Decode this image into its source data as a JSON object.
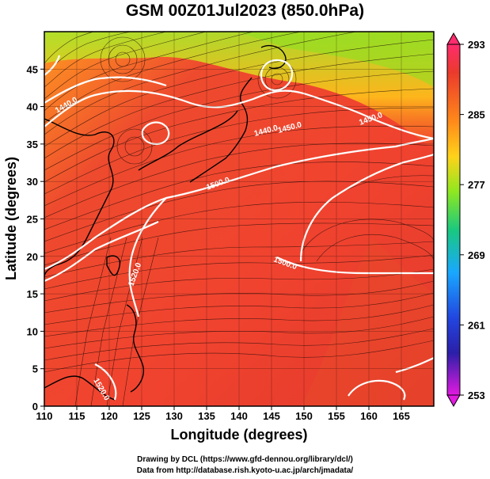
{
  "title": "GSM 00Z01Jul2023 (850.0hPa)",
  "map": {
    "xlabel": "Longitude (degrees)",
    "ylabel": "Latitude (degrees)",
    "lon_ticks": [
      "110",
      "115",
      "120",
      "125",
      "130",
      "135",
      "140",
      "145",
      "150",
      "155",
      "160",
      "165"
    ],
    "lat_ticks": [
      "0",
      "5",
      "10",
      "15",
      "20",
      "25",
      "30",
      "35",
      "40",
      "45"
    ],
    "lon_range": [
      110,
      170
    ],
    "lat_range": [
      0,
      50
    ],
    "contour_labels": [
      "1440.0",
      "1440.0",
      "1450.0",
      "1450.0",
      "1500.0",
      "1500.0",
      "1520.0",
      "1520.0"
    ]
  },
  "colorbar": {
    "labels": [
      "293",
      "285",
      "277",
      "269",
      "261",
      "253"
    ],
    "range": [
      253,
      293
    ],
    "colors": [
      "#ff2c6e",
      "#e33b2f",
      "#ff8a1a",
      "#ffd21a",
      "#8fe820",
      "#19c880",
      "#19a8ff",
      "#2246e0",
      "#2b1fa8",
      "#6a1aa8",
      "#e11ae0"
    ]
  },
  "credits": {
    "line1": "Drawing by DCL (https://www.gfd-dennou.org/library/dcl/)",
    "line2": "Data from http://database.rish.kyoto-u.ac.jp/arch/jmadata/"
  }
}
